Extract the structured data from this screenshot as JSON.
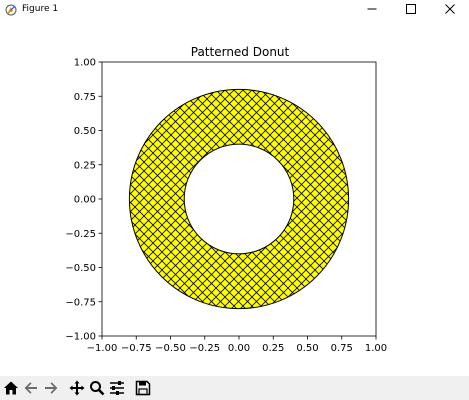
{
  "window": {
    "title": "Figure 1",
    "icons": {
      "app": "matplotlib-icon",
      "minimize": "minimize-icon",
      "maximize": "maximize-icon",
      "close": "close-icon"
    }
  },
  "toolbar": {
    "items": [
      {
        "name": "home-icon"
      },
      {
        "name": "back-arrow-icon"
      },
      {
        "name": "forward-arrow-icon"
      },
      {
        "name": "pan-icon"
      },
      {
        "name": "zoom-icon"
      },
      {
        "name": "configure-subplots-icon"
      },
      {
        "name": "save-icon"
      }
    ]
  },
  "chart_data": {
    "type": "pie",
    "title": "Patterned Donut",
    "xlim": [
      -1.0,
      1.0
    ],
    "ylim": [
      -1.0,
      1.0
    ],
    "x_ticks": [
      "−1.00",
      "−0.75",
      "−0.50",
      "−0.25",
      "0.00",
      "0.25",
      "0.50",
      "0.75",
      "1.00"
    ],
    "y_ticks": [
      "1.00",
      "0.75",
      "0.50",
      "0.25",
      "0.00",
      "−0.25",
      "−0.50",
      "−0.75",
      "−1.00"
    ],
    "x_tick_values": [
      -1.0,
      -0.75,
      -0.5,
      -0.25,
      0.0,
      0.25,
      0.5,
      0.75,
      1.0
    ],
    "y_tick_values": [
      1.0,
      0.75,
      0.5,
      0.25,
      0.0,
      -0.25,
      -0.5,
      -0.75,
      -1.0
    ],
    "donut": {
      "outer_radius": 0.8,
      "inner_radius": 0.4,
      "center": [
        0,
        0
      ],
      "fill_color": "#ffff00",
      "edge_color": "#000000",
      "hatch": "xx"
    },
    "grid": false
  }
}
